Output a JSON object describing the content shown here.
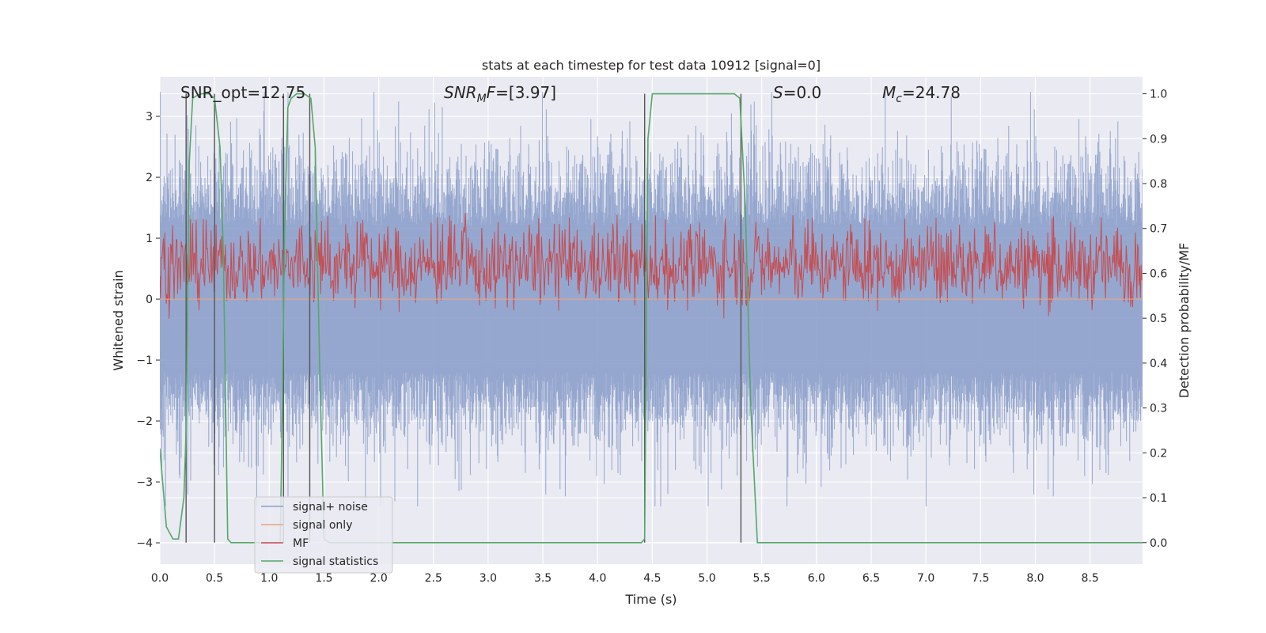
{
  "chart_data": {
    "type": "line",
    "title": "stats at each timestep for test data 10912 [signal=0]",
    "xlabel": "Time (s)",
    "ylabel": "Whitened strain",
    "y2label": "Detection probability/MF",
    "xlim": [
      0.0,
      8.98
    ],
    "ylim": [
      -4.35,
      3.65
    ],
    "y2lim": [
      -0.048,
      1.038
    ],
    "xticks": [
      "0.0",
      "0.5",
      "1.0",
      "1.5",
      "2.0",
      "2.5",
      "3.0",
      "3.5",
      "4.0",
      "4.5",
      "5.0",
      "5.5",
      "6.0",
      "6.5",
      "7.0",
      "7.5",
      "8.0",
      "8.5"
    ],
    "yticks": [
      "3",
      "2",
      "1",
      "0",
      "−1",
      "−2",
      "−3",
      "−4"
    ],
    "y2ticks": [
      "1.0",
      "0.9",
      "0.8",
      "0.7",
      "0.6",
      "0.5",
      "0.4",
      "0.3",
      "0.2",
      "0.1",
      "0.0"
    ],
    "grid": true,
    "legend_position": "lower-left",
    "annotations": {
      "snr_opt": "SNR_opt=12.75",
      "snr_mf_italic": "SNR",
      "snr_mf_sub": "M",
      "snr_mf_italic2": "F",
      "snr_mf_value": "=[3.97]",
      "s_label": "S",
      "s_value": "=0.0",
      "mc_label": "M",
      "mc_sub": "c",
      "mc_value": "=24.78"
    },
    "series": [
      {
        "name": "signal+ noise",
        "color": "#8da0cb",
        "axis": "left",
        "description_amplitude": [
          -2.5,
          3.1
        ],
        "representation": "noise band"
      },
      {
        "name": "signal only",
        "color": "#e8a580",
        "axis": "left",
        "values_constant": 0.0
      },
      {
        "name": "MF",
        "color": "#c44e52",
        "axis": "right",
        "band": [
          0.55,
          0.68
        ]
      },
      {
        "name": "signal statistics",
        "color": "#55a868",
        "axis": "right",
        "x": [
          0.0,
          0.06,
          0.12,
          0.17,
          0.22,
          0.24,
          0.27,
          0.3,
          0.33,
          0.38,
          0.45,
          0.5,
          0.55,
          0.58,
          0.62,
          0.65,
          0.7,
          1.1,
          1.12,
          1.14,
          1.17,
          1.2,
          1.25,
          1.32,
          1.38,
          1.42,
          1.46,
          1.5,
          1.55,
          4.4,
          4.43,
          4.46,
          4.5,
          5.25,
          5.3,
          5.35,
          5.4,
          5.46,
          8.98
        ],
        "y": [
          0.21,
          0.035,
          0.008,
          0.008,
          0.1,
          0.25,
          0.85,
          0.99,
          0.995,
          1.0,
          1.0,
          0.99,
          0.88,
          0.65,
          0.008,
          0.0,
          0.0,
          0.0,
          0.3,
          0.7,
          0.97,
          0.99,
          1.0,
          1.0,
          0.99,
          0.88,
          0.4,
          0.008,
          0.0,
          0.0,
          0.008,
          0.9,
          1.0,
          1.0,
          0.99,
          0.75,
          0.3,
          0.0,
          0.0
        ]
      }
    ],
    "vlines": [
      0.24,
      0.5,
      1.13,
      1.37,
      4.43,
      5.31
    ]
  }
}
